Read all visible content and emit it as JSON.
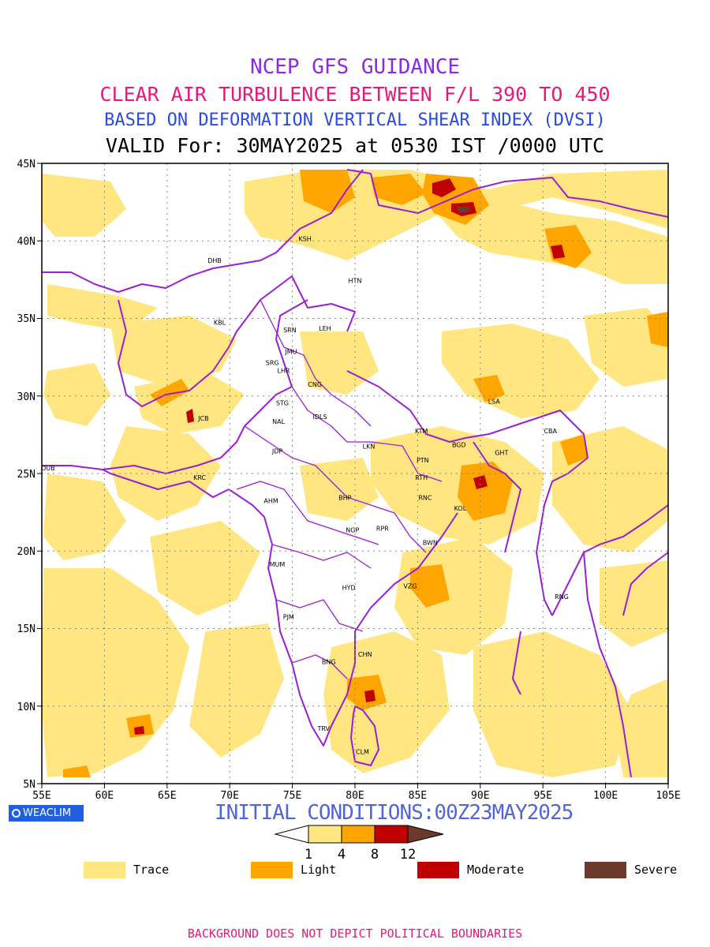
{
  "titles": {
    "line1": "NCEP GFS GUIDANCE",
    "line2": "CLEAR AIR TURBULENCE BETWEEN F/L 390 TO 450",
    "line3": "BASED ON DEFORMATION VERTICAL SHEAR INDEX (DVSI)",
    "line4": "VALID For: 30MAY2025 at 0530 IST /0000 UTC"
  },
  "axes": {
    "lon_labels": [
      "55E",
      "60E",
      "65E",
      "70E",
      "75E",
      "80E",
      "85E",
      "90E",
      "95E",
      "100E",
      "105E"
    ],
    "lat_labels": [
      "45N",
      "40N",
      "35N",
      "30N",
      "25N",
      "20N",
      "15N",
      "10N",
      "5N"
    ]
  },
  "cities": [
    {
      "code": "KSH",
      "lon": 76.0,
      "lat": 40.0
    },
    {
      "code": "DHB",
      "lon": 68.8,
      "lat": 38.6
    },
    {
      "code": "HTN",
      "lon": 80.0,
      "lat": 37.3
    },
    {
      "code": "KBL",
      "lon": 69.2,
      "lat": 34.6
    },
    {
      "code": "SRN",
      "lon": 74.8,
      "lat": 34.1
    },
    {
      "code": "LEH",
      "lon": 77.6,
      "lat": 34.2
    },
    {
      "code": "JMU",
      "lon": 74.9,
      "lat": 32.7
    },
    {
      "code": "SRG",
      "lon": 73.4,
      "lat": 32.0
    },
    {
      "code": "LHR",
      "lon": 74.3,
      "lat": 31.5
    },
    {
      "code": "CNG",
      "lon": 76.8,
      "lat": 30.6
    },
    {
      "code": "STG",
      "lon": 74.2,
      "lat": 29.4
    },
    {
      "code": "LSA",
      "lon": 91.1,
      "lat": 29.5
    },
    {
      "code": "JCB",
      "lon": 67.9,
      "lat": 28.4
    },
    {
      "code": "NAL",
      "lon": 73.9,
      "lat": 28.2
    },
    {
      "code": "IDLS",
      "lon": 77.2,
      "lat": 28.5
    },
    {
      "code": "KTM",
      "lon": 85.3,
      "lat": 27.6
    },
    {
      "code": "BGD",
      "lon": 88.3,
      "lat": 26.7
    },
    {
      "code": "CBA",
      "lon": 95.6,
      "lat": 27.6
    },
    {
      "code": "LKN",
      "lon": 81.1,
      "lat": 26.6
    },
    {
      "code": "GHT",
      "lon": 91.7,
      "lat": 26.2
    },
    {
      "code": "JDP",
      "lon": 73.8,
      "lat": 26.3
    },
    {
      "code": "PTN",
      "lon": 85.4,
      "lat": 25.7
    },
    {
      "code": "DUB",
      "lon": 55.5,
      "lat": 25.2
    },
    {
      "code": "RTH",
      "lon": 85.3,
      "lat": 24.6
    },
    {
      "code": "KRC",
      "lon": 67.6,
      "lat": 24.6
    },
    {
      "code": "BHP",
      "lon": 79.2,
      "lat": 23.3
    },
    {
      "code": "AHM",
      "lon": 73.3,
      "lat": 23.1
    },
    {
      "code": "RNC",
      "lon": 85.6,
      "lat": 23.3
    },
    {
      "code": "KOL",
      "lon": 88.4,
      "lat": 22.6
    },
    {
      "code": "NGP",
      "lon": 79.8,
      "lat": 21.2
    },
    {
      "code": "RPR",
      "lon": 82.2,
      "lat": 21.3
    },
    {
      "code": "BWN",
      "lon": 86.0,
      "lat": 20.4
    },
    {
      "code": "MUM",
      "lon": 73.8,
      "lat": 19.0
    },
    {
      "code": "HYD",
      "lon": 79.5,
      "lat": 17.5
    },
    {
      "code": "VZG",
      "lon": 84.4,
      "lat": 17.6
    },
    {
      "code": "RNG",
      "lon": 96.5,
      "lat": 16.9
    },
    {
      "code": "PJM",
      "lon": 74.7,
      "lat": 15.6
    },
    {
      "code": "CHN",
      "lon": 80.8,
      "lat": 13.2
    },
    {
      "code": "BNG",
      "lon": 77.9,
      "lat": 12.7
    },
    {
      "code": "TRV",
      "lon": 77.5,
      "lat": 8.4
    },
    {
      "code": "CLM",
      "lon": 80.6,
      "lat": 6.9
    }
  ],
  "logo": "WEACLIM",
  "initial_conditions": "INITIAL CONDITIONS:00Z23MAY2025",
  "colorbar": {
    "ticks": [
      "1",
      "4",
      "8",
      "12"
    ],
    "colors": [
      "#ffe680",
      "#ffa500",
      "#c00000",
      "#6b3a2a"
    ]
  },
  "legend": [
    {
      "label": "Trace",
      "color": "#ffe680"
    },
    {
      "label": "Light",
      "color": "#ffa500"
    },
    {
      "label": "Moderate",
      "color": "#c00000"
    },
    {
      "label": "Severe",
      "color": "#6b3a2a"
    }
  ],
  "colors": {
    "trace": "#ffe680",
    "light": "#ffa500",
    "moderate": "#c00000",
    "severe": "#6b3a2a",
    "boundary": "#9a1fd0",
    "grid": "#888888"
  },
  "footer": "BACKGROUND DOES NOT DEPICT POLITICAL BOUNDARIES"
}
